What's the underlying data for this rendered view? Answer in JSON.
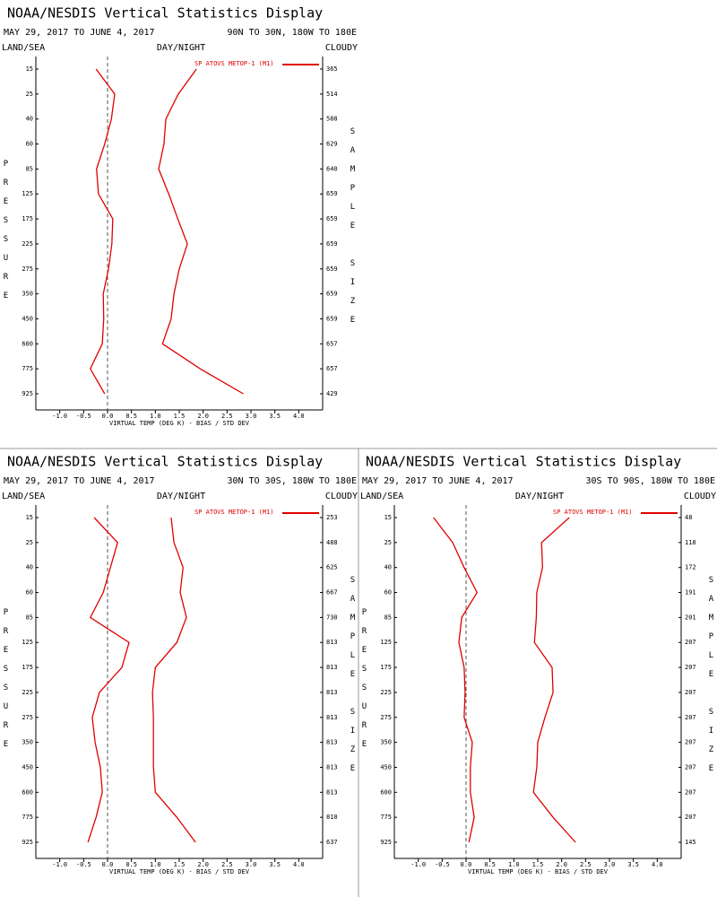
{
  "chart_data": [
    {
      "type": "line",
      "title": "NOAA/NESDIS Vertical Statistics Display",
      "date_range": "MAY 29, 2017 TO JUNE 4, 2017",
      "region": "90N TO 30N, 180W TO 180E",
      "land_sea_label": "LAND/SEA",
      "day_night_label": "DAY/NIGHT",
      "cloudy_label": "CLOUDY",
      "ylabel": "PRESSURE",
      "y2label": "SAMPLE SIZE",
      "xlabel": "VIRTUAL TEMP (DEG K) - BIAS / STD DEV",
      "categories": [
        15,
        25,
        40,
        60,
        85,
        125,
        175,
        225,
        275,
        350,
        450,
        600,
        775,
        925
      ],
      "sample_sizes": [
        365,
        514,
        588,
        629,
        640,
        659,
        659,
        659,
        659,
        659,
        659,
        657,
        657,
        429
      ],
      "series": [
        {
          "name": "SP ATOVS METOP-1 (M1)",
          "color": "#e00000",
          "bias": [
            -0.24,
            0.15,
            0.08,
            -0.06,
            -0.23,
            -0.19,
            0.11,
            0.09,
            0.02,
            -0.09,
            -0.08,
            -0.11,
            -0.36,
            -0.06
          ],
          "std_dev": [
            1.86,
            1.48,
            1.22,
            1.18,
            1.07,
            1.28,
            1.47,
            1.67,
            1.5,
            1.39,
            1.33,
            1.15,
            1.94,
            2.84
          ]
        }
      ],
      "xlim": [
        -1.5,
        4.5
      ],
      "xticks": [
        {
          "value": -1,
          "label": "-1.0"
        },
        -0.5,
        {
          "value": 0,
          "label": "0.0"
        },
        0.5,
        {
          "value": 1,
          "label": "1.0"
        },
        1.5,
        {
          "value": 2,
          "label": "2.0"
        },
        2.5,
        {
          "value": 3,
          "label": "3.0"
        },
        3.5,
        {
          "value": 4,
          "label": "4.0"
        }
      ]
    },
    {
      "type": "line",
      "title": "NOAA/NESDIS Vertical Statistics Display",
      "date_range": "MAY 29, 2017 TO JUNE 4, 2017",
      "region": "30N TO 30S, 180W TO 180E",
      "land_sea_label": "LAND/SEA",
      "day_night_label": "DAY/NIGHT",
      "cloudy_label": "CLOUDY",
      "ylabel": "PRESSURE",
      "y2label": "SAMPLE SIZE",
      "xlabel": "VIRTUAL TEMP (DEG K) - BIAS / STD DEV",
      "categories": [
        15,
        25,
        40,
        60,
        85,
        125,
        175,
        225,
        275,
        350,
        450,
        600,
        775,
        925
      ],
      "sample_sizes": [
        253,
        488,
        625,
        667,
        730,
        813,
        813,
        813,
        813,
        813,
        813,
        813,
        810,
        637
      ],
      "series": [
        {
          "name": "SP ATOVS METOP-1 (M1)",
          "color": "#e00000",
          "bias": [
            -0.28,
            0.21,
            0.06,
            -0.09,
            -0.36,
            0.45,
            0.3,
            -0.17,
            -0.32,
            -0.26,
            -0.15,
            -0.11,
            -0.24,
            -0.41
          ],
          "std_dev": [
            1.33,
            1.39,
            1.58,
            1.52,
            1.65,
            1.45,
            1.0,
            0.94,
            0.96,
            0.96,
            0.96,
            1.0,
            1.45,
            1.84
          ]
        }
      ],
      "xlim": [
        -1.5,
        4.5
      ],
      "xticks": [
        {
          "value": -1,
          "label": "-1.0"
        },
        -0.5,
        {
          "value": 0,
          "label": "0.0"
        },
        0.5,
        {
          "value": 1,
          "label": "1.0"
        },
        1.5,
        {
          "value": 2,
          "label": "2.0"
        },
        2.5,
        {
          "value": 3,
          "label": "3.0"
        },
        3.5,
        {
          "value": 4,
          "label": "4.0"
        }
      ]
    },
    {
      "type": "line",
      "title": "NOAA/NESDIS Vertical Statistics Display",
      "date_range": "MAY 29, 2017 TO JUNE 4, 2017",
      "region": "30S TO 90S, 180W TO 180E",
      "land_sea_label": "LAND/SEA",
      "day_night_label": "DAY/NIGHT",
      "cloudy_label": "CLOUDY",
      "ylabel": "PRESSURE",
      "y2label": "SAMPLE SIZE",
      "xlabel": "VIRTUAL TEMP (DEG K) - BIAS / STD DEV",
      "categories": [
        15,
        25,
        40,
        60,
        85,
        125,
        175,
        225,
        275,
        350,
        450,
        600,
        775,
        925
      ],
      "sample_sizes": [
        48,
        118,
        172,
        191,
        201,
        207,
        207,
        207,
        207,
        207,
        207,
        207,
        207,
        145
      ],
      "series": [
        {
          "name": "SP ATOVS METOP-1 (M1)",
          "color": "#e00000",
          "bias": [
            -0.68,
            -0.28,
            -0.04,
            0.23,
            -0.09,
            -0.15,
            -0.04,
            -0.02,
            -0.04,
            0.13,
            0.09,
            0.09,
            0.17,
            0.06
          ],
          "std_dev": [
            2.16,
            1.58,
            1.6,
            1.48,
            1.47,
            1.43,
            1.8,
            1.82,
            1.65,
            1.5,
            1.48,
            1.41,
            1.82,
            2.29
          ]
        }
      ],
      "xlim": [
        -1.5,
        4.5
      ],
      "xticks": [
        {
          "value": -1,
          "label": "-1.0"
        },
        -0.5,
        {
          "value": 0,
          "label": "0.0"
        },
        0.5,
        {
          "value": 1,
          "label": "1.0"
        },
        1.5,
        {
          "value": 2,
          "label": "2.0"
        },
        2.5,
        {
          "value": 3,
          "label": "3.0"
        },
        3.5,
        {
          "value": 4,
          "label": "4.0"
        }
      ]
    }
  ]
}
